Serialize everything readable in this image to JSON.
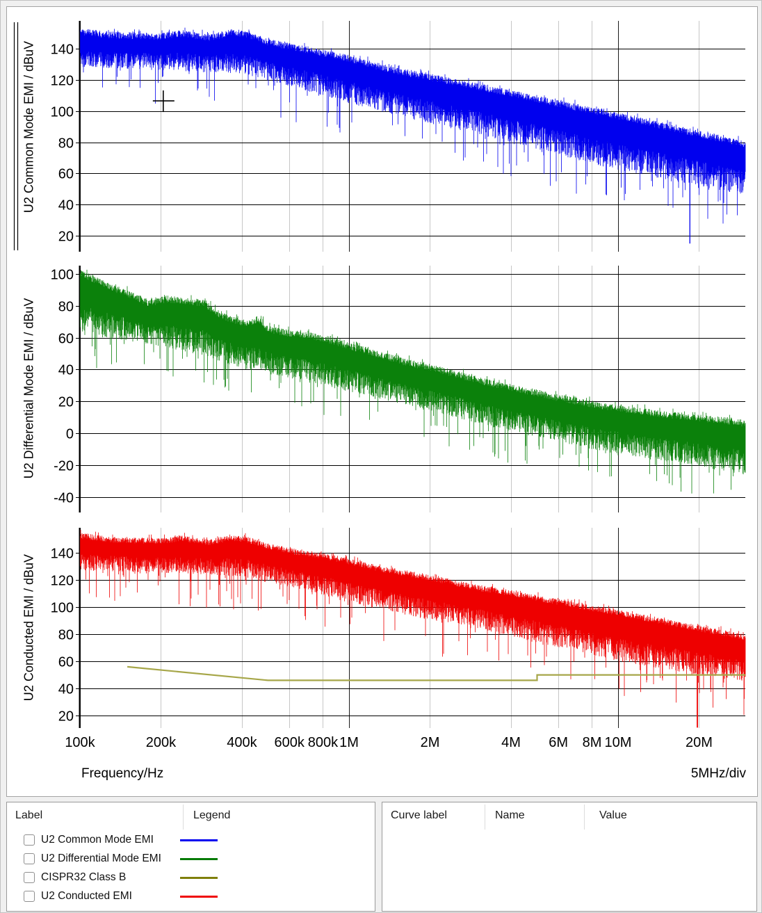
{
  "window": {
    "background": "#f0f0f0",
    "panel_background": "#ffffff",
    "grid_minor_color": "#c6c6c6",
    "grid_major_color": "#1a1a1a",
    "grid_horizontal_color": "#000000"
  },
  "plot_panel": {
    "x_axis": {
      "label": "Frequency/Hz",
      "scale_label": "5MHz/div",
      "scale": "log",
      "hz_min": 100000,
      "hz_max": 29700000,
      "ticks": [
        {
          "label": "100k",
          "hz": 100000,
          "major": true
        },
        {
          "label": "200k",
          "hz": 200000,
          "major": false
        },
        {
          "label": "400k",
          "hz": 400000,
          "major": false
        },
        {
          "label": "600k",
          "hz": 600000,
          "major": false
        },
        {
          "label": "800k",
          "hz": 800000,
          "major": false
        },
        {
          "label": "1M",
          "hz": 1000000,
          "major": true
        },
        {
          "label": "2M",
          "hz": 2000000,
          "major": false
        },
        {
          "label": "4M",
          "hz": 4000000,
          "major": false
        },
        {
          "label": "6M",
          "hz": 6000000,
          "major": false
        },
        {
          "label": "8M",
          "hz": 8000000,
          "major": false
        },
        {
          "label": "10M",
          "hz": 10000000,
          "major": true
        },
        {
          "label": "20M",
          "hz": 20000000,
          "major": false
        }
      ]
    },
    "cursor": {
      "crosshair_hz": 204000,
      "crosshair_dbuv": 106.5
    },
    "selected_axis_marker": "double-line-left-of-top-plot"
  },
  "chart_data": [
    {
      "type": "line",
      "title": "U2 Common Mode EMI / dBuV",
      "series_name": "U2 Common Mode EMI",
      "color": "#0000EE",
      "x_scale": "log",
      "xlim_hz": [
        100000,
        29700000
      ],
      "y_ticks": [
        140,
        120,
        100,
        80,
        60,
        40,
        20
      ],
      "ylim": [
        9.8,
        157.8
      ],
      "envelope_top_dbuv": [
        [
          100000,
          153
        ],
        [
          130000,
          151
        ],
        [
          160000,
          150.5
        ],
        [
          200000,
          150
        ],
        [
          240000,
          152
        ],
        [
          300000,
          149
        ],
        [
          360000,
          152.5
        ],
        [
          420000,
          151
        ],
        [
          500000,
          146.5
        ],
        [
          600000,
          143.5
        ],
        [
          700000,
          141.5
        ],
        [
          800000,
          139.5
        ],
        [
          1000000,
          136
        ],
        [
          1300000,
          130.5
        ],
        [
          1600000,
          127
        ],
        [
          2000000,
          124
        ],
        [
          2600000,
          120
        ],
        [
          3200000,
          117
        ],
        [
          4000000,
          113.5
        ],
        [
          5000000,
          110
        ],
        [
          6000000,
          107
        ],
        [
          8000000,
          102.5
        ],
        [
          10000000,
          99
        ],
        [
          14000000,
          93.5
        ],
        [
          20000000,
          87.5
        ],
        [
          29700000,
          81
        ]
      ],
      "envelope_bottom_dbuv": [
        [
          100000,
          128
        ],
        [
          200000,
          126
        ],
        [
          300000,
          125
        ],
        [
          400000,
          124
        ],
        [
          600000,
          116
        ],
        [
          800000,
          110
        ],
        [
          1000000,
          105
        ],
        [
          1500000,
          97
        ],
        [
          2000000,
          92
        ],
        [
          3000000,
          85
        ],
        [
          4000000,
          80
        ],
        [
          6000000,
          72
        ],
        [
          10000000,
          62
        ],
        [
          15000000,
          56
        ],
        [
          20000000,
          52
        ],
        [
          29700000,
          46
        ]
      ],
      "spike_probability": 0.05,
      "spike_depth_db": 22,
      "notable_dips": [
        [
          18500000,
          15
        ]
      ]
    },
    {
      "type": "line",
      "title": "U2 Differential Mode EMI / dBuV",
      "series_name": "U2 Differential Mode EMI",
      "color": "#0B810B",
      "x_scale": "log",
      "xlim_hz": [
        100000,
        29700000
      ],
      "y_ticks": [
        100,
        80,
        60,
        40,
        20,
        0,
        -20,
        -40
      ],
      "ylim": [
        -49.7,
        105.2
      ],
      "envelope_top_dbuv": [
        [
          100000,
          103
        ],
        [
          115000,
          98
        ],
        [
          135000,
          93
        ],
        [
          160000,
          88
        ],
        [
          180000,
          84
        ],
        [
          210000,
          86.5
        ],
        [
          250000,
          85
        ],
        [
          290000,
          84
        ],
        [
          320000,
          78
        ],
        [
          360000,
          74
        ],
        [
          420000,
          71
        ],
        [
          470000,
          73
        ],
        [
          500000,
          67.5
        ],
        [
          600000,
          65
        ],
        [
          700000,
          63.5
        ],
        [
          800000,
          62
        ],
        [
          1000000,
          57
        ],
        [
          1300000,
          51.5
        ],
        [
          1600000,
          47
        ],
        [
          2000000,
          43.5
        ],
        [
          2600000,
          38.5
        ],
        [
          3200000,
          34.5
        ],
        [
          4000000,
          31
        ],
        [
          5000000,
          27.5
        ],
        [
          6000000,
          24.5
        ],
        [
          8000000,
          20.5
        ],
        [
          10000000,
          18
        ],
        [
          14000000,
          14.5
        ],
        [
          20000000,
          12
        ],
        [
          29700000,
          8.5
        ]
      ],
      "envelope_bottom_dbuv": [
        [
          100000,
          62
        ],
        [
          150000,
          58
        ],
        [
          200000,
          54
        ],
        [
          300000,
          48
        ],
        [
          400000,
          40
        ],
        [
          500000,
          37
        ],
        [
          600000,
          34
        ],
        [
          800000,
          30
        ],
        [
          1000000,
          26
        ],
        [
          1500000,
          19
        ],
        [
          2000000,
          14
        ],
        [
          3000000,
          6
        ],
        [
          4000000,
          1
        ],
        [
          6000000,
          -6
        ],
        [
          10000000,
          -13
        ],
        [
          15000000,
          -18
        ],
        [
          20000000,
          -21
        ],
        [
          29700000,
          -26
        ]
      ],
      "spike_probability": 0.06,
      "spike_depth_db": 20,
      "notable_dips": []
    },
    {
      "type": "line",
      "title": "U2 Conducted EMI / dBuV",
      "series_name": "U2 Conducted EMI",
      "color": "#EE0000",
      "x_scale": "log",
      "xlim_hz": [
        100000,
        29700000
      ],
      "y_ticks": [
        140,
        120,
        100,
        80,
        60,
        40,
        20
      ],
      "ylim": [
        10.8,
        158.5
      ],
      "envelope_top_dbuv": [
        [
          100000,
          155
        ],
        [
          130000,
          152
        ],
        [
          200000,
          151
        ],
        [
          240000,
          153
        ],
        [
          300000,
          150
        ],
        [
          360000,
          153
        ],
        [
          420000,
          152
        ],
        [
          500000,
          147
        ],
        [
          600000,
          144
        ],
        [
          800000,
          140
        ],
        [
          1000000,
          136
        ],
        [
          1300000,
          130.5
        ],
        [
          2000000,
          124
        ],
        [
          3000000,
          116.5
        ],
        [
          4000000,
          112.5
        ],
        [
          5000000,
          109
        ],
        [
          6000000,
          106
        ],
        [
          8000000,
          101.5
        ],
        [
          10000000,
          98
        ],
        [
          14000000,
          92.5
        ],
        [
          20000000,
          86.5
        ],
        [
          29700000,
          80
        ]
      ],
      "envelope_bottom_dbuv": [
        [
          100000,
          127
        ],
        [
          200000,
          125
        ],
        [
          300000,
          124
        ],
        [
          400000,
          122
        ],
        [
          600000,
          115
        ],
        [
          800000,
          109
        ],
        [
          1000000,
          103
        ],
        [
          1500000,
          96
        ],
        [
          2000000,
          90
        ],
        [
          3000000,
          84
        ],
        [
          4000000,
          78
        ],
        [
          6000000,
          70
        ],
        [
          10000000,
          60
        ],
        [
          15000000,
          54
        ],
        [
          20000000,
          50
        ],
        [
          29700000,
          45
        ]
      ],
      "spike_probability": 0.05,
      "spike_depth_db": 25,
      "notable_dips": [
        [
          19700000,
          11
        ]
      ],
      "limit_lines": [
        {
          "label": "CISPR32 Class B",
          "color": "#A6A648",
          "points_hz_dbuv": [
            [
              150000,
              56
            ],
            [
              500000,
              46
            ],
            [
              5000000,
              46
            ],
            [
              5000000,
              50
            ],
            [
              29700000,
              50
            ]
          ]
        }
      ]
    }
  ],
  "legend_panel": {
    "headers": [
      "Label",
      "Legend"
    ],
    "items": [
      {
        "label": "U2 Common Mode EMI",
        "color": "#0000F0",
        "checked": false
      },
      {
        "label": "U2 Differential Mode EMI",
        "color": "#037B03",
        "checked": false
      },
      {
        "label": "CISPR32 Class B",
        "color": "#7F7F0B",
        "checked": false
      },
      {
        "label": "U2 Conducted EMI",
        "color": "#EF0404",
        "checked": false
      }
    ]
  },
  "values_panel": {
    "headers": [
      "Curve label",
      "Name",
      "Value"
    ],
    "rows": []
  }
}
